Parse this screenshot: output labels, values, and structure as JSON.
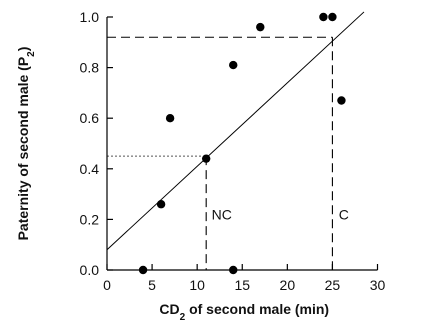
{
  "chart_data": {
    "type": "scatter",
    "title": "",
    "xlabel_prefix": "CD",
    "xlabel_subscript": "2",
    "xlabel_suffix": " of second male (min)",
    "ylabel_prefix": "Paternity of second male (P",
    "ylabel_subscript": "2",
    "ylabel_suffix": ")",
    "xlim": [
      0,
      30
    ],
    "ylim": [
      0,
      1.0
    ],
    "xticks": [
      0,
      5,
      10,
      15,
      20,
      25,
      30
    ],
    "xtick_labels": [
      "0",
      "5",
      "10",
      "15",
      "20",
      "25",
      "30"
    ],
    "yticks": [
      0,
      0.2,
      0.4,
      0.6,
      0.8,
      1.0
    ],
    "ytick_labels": [
      "0.0",
      "0.2",
      "0.4",
      "0.6",
      "0.8",
      "1.0"
    ],
    "grid": false,
    "points": [
      {
        "x": 4,
        "y": 0.0
      },
      {
        "x": 6,
        "y": 0.26
      },
      {
        "x": 7,
        "y": 0.6
      },
      {
        "x": 11,
        "y": 0.44
      },
      {
        "x": 14,
        "y": 0.81
      },
      {
        "x": 14,
        "y": 0.0
      },
      {
        "x": 17,
        "y": 0.96
      },
      {
        "x": 24,
        "y": 1.0
      },
      {
        "x": 25,
        "y": 1.0
      },
      {
        "x": 26,
        "y": 0.67
      }
    ],
    "regression_line": {
      "x": [
        0,
        28.5
      ],
      "y": [
        0.08,
        1.02
      ]
    },
    "reference_lines": [
      {
        "style": "dotted",
        "x": [
          0,
          11
        ],
        "y": [
          0.45,
          0.45
        ]
      },
      {
        "style": "dashed",
        "x": [
          11,
          11
        ],
        "y": [
          0.45,
          0.0
        ]
      },
      {
        "style": "dashed",
        "x": [
          0,
          25
        ],
        "y": [
          0.92,
          0.92
        ]
      },
      {
        "style": "dashed",
        "x": [
          25,
          25
        ],
        "y": [
          0.92,
          0.0
        ]
      },
      {
        "style": "dotted",
        "x": [
          0,
          25
        ],
        "y": [
          0.0,
          0.0
        ]
      }
    ],
    "annotations": [
      {
        "text": "NC",
        "x": 11.6,
        "y": 0.2
      },
      {
        "text": "C",
        "x": 25.7,
        "y": 0.2
      }
    ]
  }
}
